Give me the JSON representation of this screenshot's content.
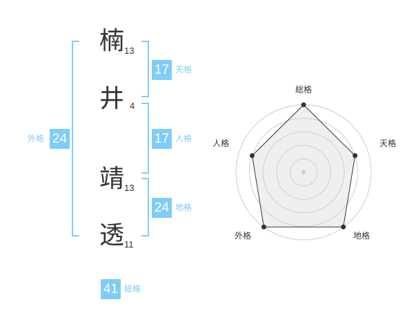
{
  "name": {
    "chars": [
      {
        "char": "楠",
        "strokes": "13"
      },
      {
        "char": "井",
        "strokes": "4"
      },
      {
        "char": "靖",
        "strokes": "13"
      },
      {
        "char": "透",
        "strokes": "11"
      }
    ]
  },
  "kaku": {
    "ten": {
      "label": "天格",
      "value": "17"
    },
    "jin": {
      "label": "人格",
      "value": "17"
    },
    "chi": {
      "label": "地格",
      "value": "24"
    },
    "gai": {
      "label": "外格",
      "value": "24"
    },
    "so": {
      "label": "総格",
      "value": "41"
    }
  },
  "accent_color": "#7fccf8",
  "chart_data": {
    "type": "radar",
    "axes": [
      "総格",
      "天格",
      "地格",
      "外格",
      "人格"
    ],
    "values": [
      5,
      4,
      5,
      5,
      4
    ],
    "range": [
      0,
      5
    ],
    "grid": true
  }
}
